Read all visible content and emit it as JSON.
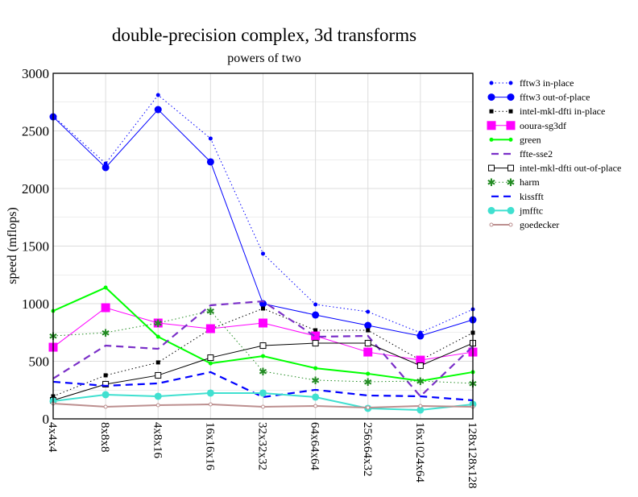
{
  "chart_data": {
    "type": "line",
    "title": "double-precision complex, 3d transforms",
    "subtitle": "powers of two",
    "xlabel": "",
    "ylabel": "speed (mflops)",
    "ylim": [
      0,
      3000
    ],
    "yticks": [
      "0",
      "500",
      "1000",
      "1500",
      "2000",
      "2500",
      "3000"
    ],
    "grid": true,
    "legend_position": "right",
    "categories": [
      "4x4x4",
      "8x8x8",
      "4x8x16",
      "16x16x16",
      "32x32x32",
      "64x64x64",
      "256x64x32",
      "16x1024x64",
      "128x128x128"
    ],
    "series": [
      {
        "name": "fftw3 in-place",
        "color": "#0000ff",
        "dash": "dotted",
        "marker": "small-circle",
        "values": [
          2630,
          2217,
          2811,
          2434,
          1434,
          993,
          930,
          748,
          951
        ]
      },
      {
        "name": "fftw3 out-of-place",
        "color": "#0000ff",
        "dash": "solid",
        "marker": "circle",
        "values": [
          2622,
          2182,
          2685,
          2231,
          1000,
          902,
          811,
          720,
          860
        ]
      },
      {
        "name": "intel-mkl-dfti in-place",
        "color": "#000000",
        "dash": "dotted",
        "marker": "small-square",
        "values": [
          196,
          378,
          490,
          780,
          958,
          769,
          769,
          510,
          748
        ]
      },
      {
        "name": "ooura-sg3df",
        "color": "#ff00ff",
        "dash": "solid",
        "marker": "square",
        "values": [
          622,
          965,
          832,
          783,
          832,
          720,
          580,
          510,
          580
        ]
      },
      {
        "name": "green",
        "color": "#00ff00",
        "dash": "solid-thick",
        "marker": "small-circle",
        "values": [
          937,
          1140,
          713,
          482,
          545,
          440,
          392,
          329,
          406
        ]
      },
      {
        "name": "ffte-sse2",
        "color": "#7a2fc8",
        "dash": "dashed",
        "marker": "none",
        "values": [
          350,
          636,
          608,
          986,
          1021,
          713,
          720,
          196,
          630
        ]
      },
      {
        "name": "intel-mkl-dfti out-of-place",
        "color": "#000000",
        "dash": "solid",
        "marker": "open-square",
        "values": [
          161,
          301,
          378,
          531,
          636,
          657,
          657,
          462,
          657
        ]
      },
      {
        "name": "harm",
        "color": "#228b22",
        "dash": "dotted",
        "marker": "star",
        "values": [
          720,
          748,
          832,
          937,
          413,
          336,
          322,
          329,
          308
        ]
      },
      {
        "name": "kissfft",
        "color": "#0000ff",
        "dash": "dashed",
        "marker": "none",
        "values": [
          322,
          287,
          308,
          406,
          189,
          252,
          203,
          196,
          161
        ]
      },
      {
        "name": "jmfftc",
        "color": "#40e0d0",
        "dash": "solid-thick",
        "marker": "circle",
        "values": [
          154,
          210,
          196,
          224,
          224,
          189,
          91,
          77,
          126
        ]
      },
      {
        "name": "goedecker",
        "color": "#bc8f8f",
        "dash": "solid-thick",
        "marker": "small-open-circle",
        "values": [
          133,
          105,
          119,
          126,
          105,
          112,
          98,
          112,
          105
        ]
      }
    ]
  }
}
